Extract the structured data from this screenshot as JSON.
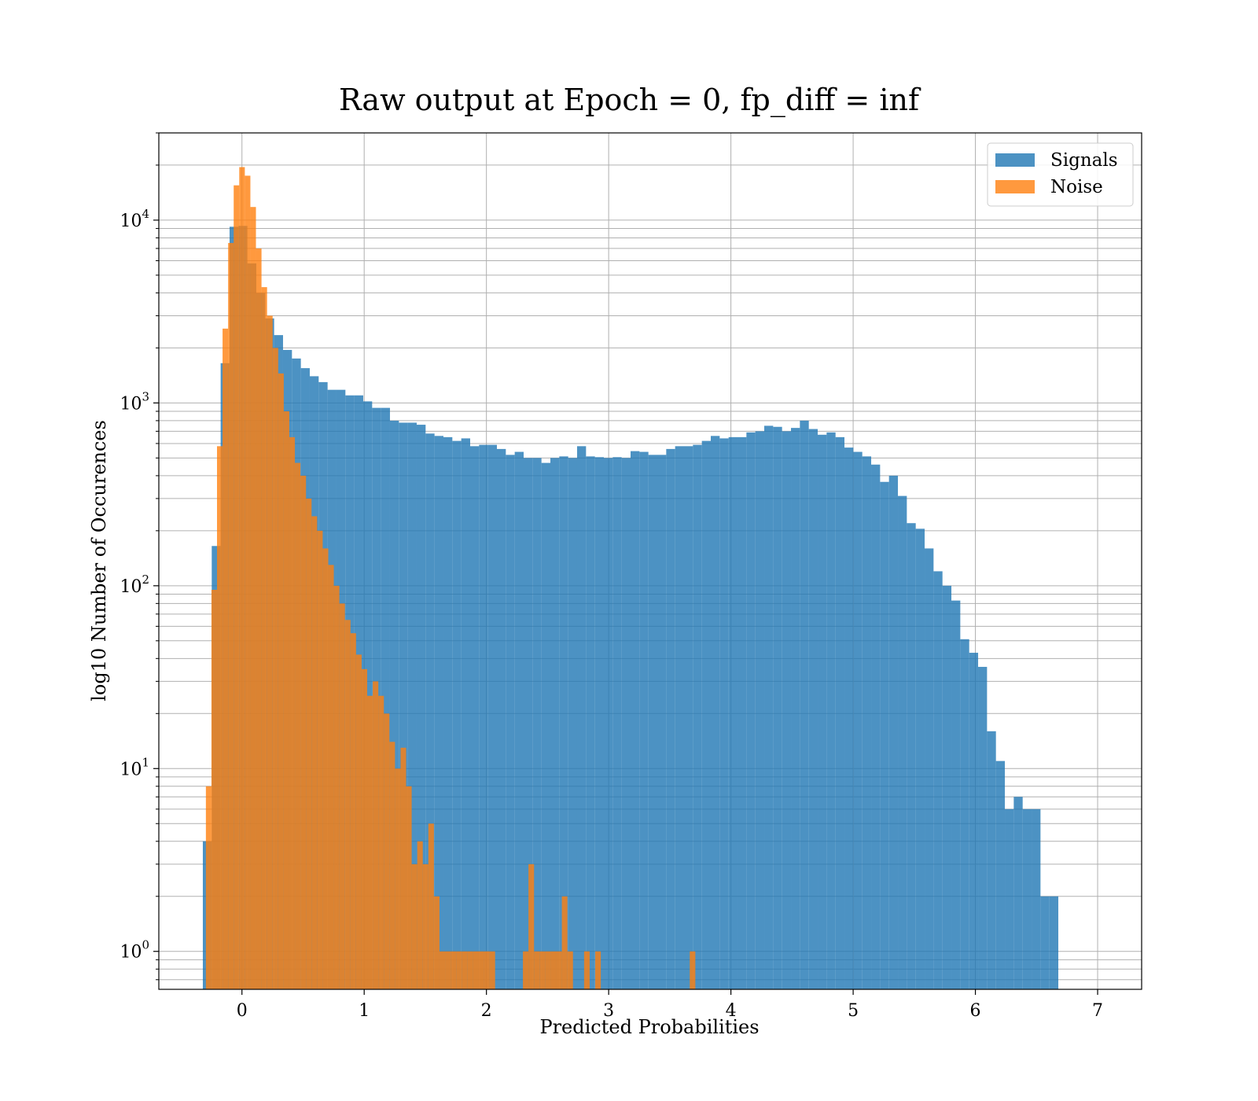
{
  "chart_data": {
    "type": "bar",
    "title": "Raw output at Epoch = 0, fp_diff = inf",
    "xlabel": "Predicted Probabilities",
    "ylabel": "log10 Number of Occurences",
    "y_scale": "log",
    "xlim": [
      -0.68,
      7.36
    ],
    "ylim": [
      0.62,
      30000
    ],
    "grid": true,
    "legend_position": "upper right",
    "x_ticks": [
      0,
      1,
      2,
      3,
      4,
      5,
      6,
      7
    ],
    "x_tick_labels": [
      "0",
      "1",
      "2",
      "3",
      "4",
      "5",
      "6",
      "7"
    ],
    "y_ticks": [
      1,
      10,
      100,
      1000,
      10000
    ],
    "y_tick_labels": [
      {
        "base": "10",
        "exp": "0"
      },
      {
        "base": "10",
        "exp": "1"
      },
      {
        "base": "10",
        "exp": "2"
      },
      {
        "base": "10",
        "exp": "3"
      },
      {
        "base": "10",
        "exp": "4"
      }
    ],
    "series": [
      {
        "name": "Signals",
        "color": "#1f77b4",
        "opacity": 0.8,
        "bin_start": -0.32,
        "bin_width": 0.0729,
        "values": [
          4,
          165,
          1650,
          9200,
          9300,
          5800,
          4000,
          2900,
          2350,
          1950,
          1750,
          1550,
          1400,
          1300,
          1180,
          1180,
          1100,
          1100,
          1020,
          940,
          940,
          800,
          780,
          780,
          760,
          680,
          660,
          650,
          620,
          640,
          580,
          590,
          590,
          560,
          520,
          540,
          500,
          500,
          470,
          500,
          510,
          500,
          580,
          510,
          505,
          500,
          505,
          500,
          545,
          540,
          520,
          520,
          560,
          580,
          580,
          590,
          620,
          660,
          640,
          650,
          650,
          690,
          700,
          750,
          740,
          700,
          730,
          800,
          720,
          670,
          690,
          650,
          570,
          540,
          510,
          460,
          370,
          400,
          310,
          220,
          205,
          160,
          120,
          100,
          83,
          51,
          43,
          36,
          16,
          11,
          6,
          7,
          6,
          6,
          2,
          2
        ]
      },
      {
        "name": "Noise",
        "color": "#ff7f0e",
        "opacity": 0.8,
        "bin_start": -0.295,
        "bin_width": 0.0455,
        "values": [
          8,
          95,
          580,
          2550,
          7500,
          15500,
          19500,
          17500,
          11800,
          7000,
          4300,
          3000,
          2000,
          1450,
          900,
          650,
          470,
          400,
          300,
          240,
          200,
          160,
          130,
          100,
          80,
          65,
          55,
          42,
          35,
          25,
          30,
          25,
          20,
          14,
          10,
          13,
          8,
          3,
          4,
          3,
          5,
          2,
          1,
          1,
          1,
          1,
          1,
          1,
          1,
          1,
          1,
          1,
          0,
          0,
          0,
          0,
          0,
          1,
          3,
          1,
          1,
          1,
          1,
          1,
          2,
          1,
          0,
          0,
          1,
          0,
          1,
          0,
          0,
          0,
          0,
          0,
          0,
          0,
          0,
          0,
          0,
          0,
          0,
          0,
          0,
          0,
          0,
          1
        ]
      }
    ]
  }
}
